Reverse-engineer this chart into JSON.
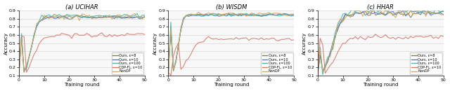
{
  "subtitles": [
    "(a) UCIHAR",
    "(b) WISDM",
    "(c) HHAR"
  ],
  "xlabel": "Training round",
  "ylabel": "Accuracy",
  "ylim": [
    0.1,
    0.9
  ],
  "xlim": [
    0,
    50
  ],
  "yticks": [
    0.1,
    0.2,
    0.3,
    0.4,
    0.5,
    0.6,
    0.7,
    0.8,
    0.9
  ],
  "xticks": [
    0,
    10,
    20,
    30,
    40,
    50
  ],
  "legend_labels": [
    "Ours, ε=8",
    "Ours, ε=10",
    "Ours, ε=100",
    "CDP-FL, ε=10",
    "NonDP"
  ],
  "colors": [
    "#7f7f3f",
    "#5578c8",
    "#3fb8b8",
    "#d4796a",
    "#d4a85a"
  ],
  "bg_color": "#f8f8f8",
  "grid_color": "#d8d8d8"
}
